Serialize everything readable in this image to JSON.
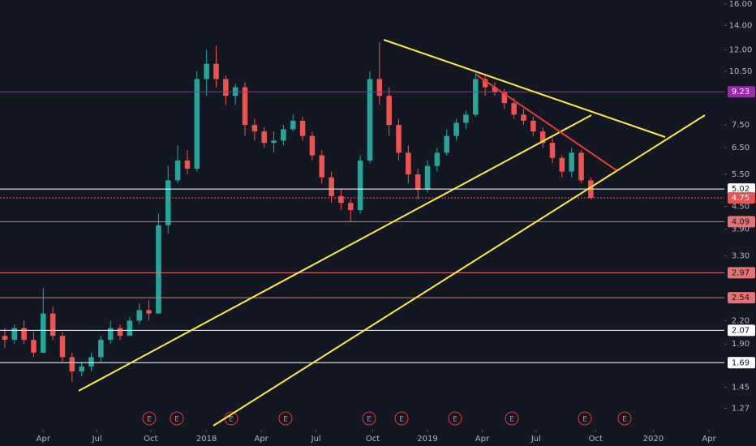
{
  "chart_data": {
    "type": "candlestick",
    "log_scale": true,
    "up_color": "#26a69a",
    "down_color": "#ef5350",
    "ylim": [
      1.11,
      16.41
    ],
    "xlim": [
      -0.5,
      74.9
    ],
    "yticks": [
      {
        "value": 16,
        "label": "16.00"
      },
      {
        "value": 14,
        "label": "14.00"
      },
      {
        "value": 12,
        "label": "12.00"
      },
      {
        "value": 10.5,
        "label": "10.50"
      },
      {
        "value": 7.5,
        "label": "7.50"
      },
      {
        "value": 6.5,
        "label": "6.50"
      },
      {
        "value": 5.5,
        "label": "5.50"
      },
      {
        "value": 4.5,
        "label": "4.50"
      },
      {
        "value": 3.9,
        "label": "3.90"
      },
      {
        "value": 3.3,
        "label": "3.30"
      },
      {
        "value": 2.2,
        "label": "2.20"
      },
      {
        "value": 1.9,
        "label": "1.90"
      },
      {
        "value": 1.45,
        "label": "1.45"
      },
      {
        "value": 1.27,
        "label": "1.27"
      }
    ],
    "xticks": [
      {
        "value": 4,
        "label": "Apr"
      },
      {
        "value": 9.6,
        "label": "Jul"
      },
      {
        "value": 15.2,
        "label": "Oct"
      },
      {
        "value": 21,
        "label": "2018"
      },
      {
        "value": 26.7,
        "label": "Apr"
      },
      {
        "value": 32.4,
        "label": "Jul"
      },
      {
        "value": 38.3,
        "label": "Oct"
      },
      {
        "value": 44,
        "label": "2019"
      },
      {
        "value": 49.7,
        "label": "Apr"
      },
      {
        "value": 55.3,
        "label": "Jul"
      },
      {
        "value": 61.5,
        "label": "Oct"
      },
      {
        "value": 67.5,
        "label": "2020"
      },
      {
        "value": 73.3,
        "label": "Apr"
      }
    ],
    "levels": [
      {
        "value": 9.23,
        "color": "#9c27b0",
        "style": "solid"
      },
      {
        "value": 5.02,
        "color": "#ffffff",
        "style": "solid"
      },
      {
        "value": 4.75,
        "color": "#ef5350",
        "style": "dotted"
      },
      {
        "value": 4.09,
        "color": "#e57373",
        "style": "solid"
      },
      {
        "value": 2.97,
        "color": "#e57373",
        "style": "solid"
      },
      {
        "value": 2.54,
        "color": "#e57373",
        "style": "solid"
      },
      {
        "value": 2.07,
        "color": "#ffffff",
        "style": "solid"
      },
      {
        "value": 1.69,
        "color": "#ffffff",
        "style": "solid"
      }
    ],
    "markers": [
      "E",
      "E",
      "E",
      "E",
      "E",
      "E",
      "E",
      "E",
      "E",
      "E"
    ],
    "ohlc": [
      [
        2.0,
        2.1,
        1.85,
        1.95
      ],
      [
        1.95,
        2.15,
        1.9,
        2.1
      ],
      [
        2.1,
        2.2,
        1.9,
        1.95
      ],
      [
        1.95,
        2.05,
        1.75,
        1.8
      ],
      [
        1.8,
        2.7,
        1.8,
        2.3
      ],
      [
        2.3,
        2.4,
        1.95,
        2.0
      ],
      [
        2.0,
        2.05,
        1.7,
        1.75
      ],
      [
        1.75,
        1.8,
        1.5,
        1.6
      ],
      [
        1.6,
        1.7,
        1.55,
        1.65
      ],
      [
        1.65,
        1.8,
        1.6,
        1.75
      ],
      [
        1.75,
        2.0,
        1.7,
        1.95
      ],
      [
        1.95,
        2.2,
        1.9,
        2.1
      ],
      [
        2.1,
        2.15,
        1.95,
        2.0
      ],
      [
        2.0,
        2.25,
        2.0,
        2.2
      ],
      [
        2.2,
        2.45,
        2.15,
        2.35
      ],
      [
        2.35,
        2.5,
        2.2,
        2.3
      ],
      [
        2.3,
        4.3,
        2.3,
        4.0
      ],
      [
        4.0,
        5.8,
        3.8,
        5.3
      ],
      [
        5.3,
        6.6,
        5.2,
        6.0
      ],
      [
        6.0,
        6.4,
        5.5,
        5.7
      ],
      [
        5.7,
        10.5,
        5.6,
        10.0
      ],
      [
        10.0,
        12.0,
        9.0,
        11.0
      ],
      [
        11.0,
        12.3,
        9.5,
        10.0
      ],
      [
        10.0,
        10.2,
        8.5,
        9.0
      ],
      [
        9.0,
        9.7,
        8.5,
        9.5
      ],
      [
        9.5,
        9.8,
        7.0,
        7.5
      ],
      [
        7.5,
        7.8,
        6.8,
        7.2
      ],
      [
        7.2,
        7.4,
        6.5,
        6.7
      ],
      [
        6.7,
        7.2,
        6.3,
        6.8
      ],
      [
        6.8,
        7.5,
        6.6,
        7.3
      ],
      [
        7.3,
        8.0,
        7.2,
        7.7
      ],
      [
        7.7,
        7.9,
        6.8,
        7.0
      ],
      [
        7.0,
        7.2,
        6.0,
        6.2
      ],
      [
        6.2,
        6.4,
        5.2,
        5.4
      ],
      [
        5.4,
        5.6,
        4.6,
        4.8
      ],
      [
        4.8,
        5.0,
        4.4,
        4.6
      ],
      [
        4.6,
        4.7,
        4.1,
        4.4
      ],
      [
        4.4,
        6.2,
        4.3,
        6.0
      ],
      [
        6.0,
        10.5,
        5.9,
        10.0
      ],
      [
        10.0,
        12.6,
        8.5,
        9.0
      ],
      [
        9.0,
        9.5,
        7.0,
        7.5
      ],
      [
        7.5,
        7.8,
        6.0,
        6.3
      ],
      [
        6.3,
        6.6,
        5.2,
        5.5
      ],
      [
        5.5,
        5.7,
        4.7,
        5.0
      ],
      [
        5.0,
        6.0,
        4.9,
        5.8
      ],
      [
        5.8,
        6.5,
        5.6,
        6.3
      ],
      [
        6.3,
        7.3,
        6.2,
        7.0
      ],
      [
        7.0,
        7.8,
        6.8,
        7.6
      ],
      [
        7.6,
        8.2,
        7.3,
        8.0
      ],
      [
        8.0,
        10.4,
        7.9,
        10.0
      ],
      [
        10.0,
        10.2,
        9.0,
        9.5
      ],
      [
        9.5,
        9.8,
        9.0,
        9.2
      ],
      [
        9.2,
        9.4,
        8.3,
        8.6
      ],
      [
        8.6,
        8.9,
        7.8,
        8.0
      ],
      [
        8.0,
        8.3,
        7.5,
        7.7
      ],
      [
        7.7,
        7.9,
        7.0,
        7.2
      ],
      [
        7.2,
        7.4,
        6.5,
        6.7
      ],
      [
        6.7,
        6.9,
        5.9,
        6.1
      ],
      [
        6.1,
        6.2,
        5.4,
        5.6
      ],
      [
        5.6,
        6.5,
        5.4,
        6.3
      ],
      [
        6.3,
        6.4,
        5.2,
        5.3
      ],
      [
        5.3,
        5.4,
        4.7,
        4.75
      ]
    ]
  }
}
